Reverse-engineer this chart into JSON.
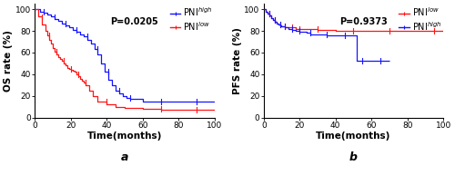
{
  "panel_a": {
    "xlabel": "Time(months)",
    "ylabel": "OS rate (%)",
    "pvalue": "P=0.0205",
    "label": "a",
    "xlim": [
      0,
      100
    ],
    "ylim": [
      0,
      105
    ],
    "yticks": [
      0,
      20,
      40,
      60,
      80,
      100
    ],
    "xticks": [
      0,
      20,
      40,
      60,
      80,
      100
    ],
    "legend_labels": [
      "PNI$^{high}$",
      "PNI$^{low}$"
    ],
    "legend_colors": [
      "#1414FF",
      "#FF1414"
    ],
    "curves": {
      "high": {
        "color": "#1414FF",
        "x": [
          0,
          3,
          5,
          7,
          9,
          11,
          13,
          15,
          17,
          19,
          21,
          23,
          25,
          27,
          29,
          31,
          33,
          35,
          37,
          39,
          41,
          43,
          45,
          47,
          49,
          51,
          53,
          60,
          70,
          80,
          90,
          100
        ],
        "y": [
          100,
          98,
          97,
          95,
          93,
          91,
          89,
          87,
          85,
          83,
          81,
          79,
          77,
          75,
          72,
          68,
          63,
          58,
          50,
          42,
          35,
          30,
          25,
          22,
          20,
          18,
          17,
          15,
          15,
          15,
          15,
          15
        ],
        "censor_x": [
          5,
          11,
          17,
          23,
          29,
          35,
          41,
          47,
          53,
          70,
          90
        ]
      },
      "low": {
        "color": "#FF1414",
        "x": [
          0,
          2,
          4,
          6,
          7,
          8,
          9,
          10,
          11,
          12,
          13,
          14,
          15,
          16,
          17,
          18,
          19,
          20,
          21,
          22,
          23,
          24,
          25,
          26,
          27,
          28,
          30,
          32,
          35,
          40,
          45,
          50,
          60,
          70,
          80,
          90,
          100
        ],
        "y": [
          100,
          93,
          86,
          80,
          76,
          72,
          68,
          64,
          61,
          58,
          56,
          54,
          52,
          50,
          48,
          46,
          45,
          44,
          43,
          42,
          40,
          38,
          36,
          34,
          32,
          30,
          25,
          20,
          15,
          12,
          10,
          9,
          8,
          7,
          7,
          7,
          7
        ],
        "censor_x": [
          4,
          8,
          12,
          16,
          20,
          24,
          28,
          40,
          70,
          90
        ]
      }
    }
  },
  "panel_b": {
    "xlabel": "Time(months)",
    "ylabel": "PFS rate (%)",
    "pvalue": "P=0.9373",
    "label": "b",
    "xlim": [
      0,
      100
    ],
    "ylim": [
      0,
      105
    ],
    "yticks": [
      0,
      20,
      40,
      60,
      80,
      100
    ],
    "xticks": [
      0,
      20,
      40,
      60,
      80,
      100
    ],
    "legend_labels": [
      "PNI$^{low}$",
      "PNI$^{high}$"
    ],
    "legend_colors": [
      "#FF1414",
      "#1414FF"
    ],
    "curves": {
      "low": {
        "color": "#FF1414",
        "x": [
          0,
          1,
          2,
          3,
          4,
          5,
          6,
          7,
          8,
          9,
          10,
          12,
          14,
          16,
          18,
          20,
          25,
          30,
          40,
          50,
          60,
          70,
          80,
          90,
          95,
          100
        ],
        "y": [
          100,
          98,
          96,
          94,
          92,
          90,
          88,
          87,
          86,
          85,
          84,
          83,
          83,
          83,
          82,
          82,
          82,
          81,
          80,
          80,
          80,
          80,
          80,
          80,
          80,
          80
        ],
        "censor_x": [
          3,
          6,
          9,
          12,
          16,
          20,
          30,
          50,
          70,
          95
        ]
      },
      "high": {
        "color": "#1414FF",
        "x": [
          0,
          1,
          2,
          3,
          4,
          5,
          6,
          7,
          8,
          9,
          10,
          12,
          14,
          16,
          18,
          20,
          22,
          24,
          26,
          28,
          30,
          35,
          40,
          45,
          48,
          50,
          52,
          55,
          60,
          65,
          70
        ],
        "y": [
          100,
          98,
          96,
          94,
          92,
          90,
          88,
          87,
          86,
          85,
          84,
          83,
          82,
          81,
          80,
          79,
          79,
          78,
          77,
          77,
          77,
          76,
          76,
          76,
          76,
          76,
          52,
          52,
          52,
          52,
          52
        ],
        "censor_x": [
          3,
          6,
          9,
          12,
          16,
          20,
          26,
          35,
          45,
          55,
          65
        ]
      }
    }
  },
  "figure": {
    "bg_color": "#FFFFFF",
    "axes_color": "#000000",
    "font_size": 7,
    "tick_font_size": 6.5,
    "label_font_size": 7.5,
    "legend_font_size": 7
  }
}
